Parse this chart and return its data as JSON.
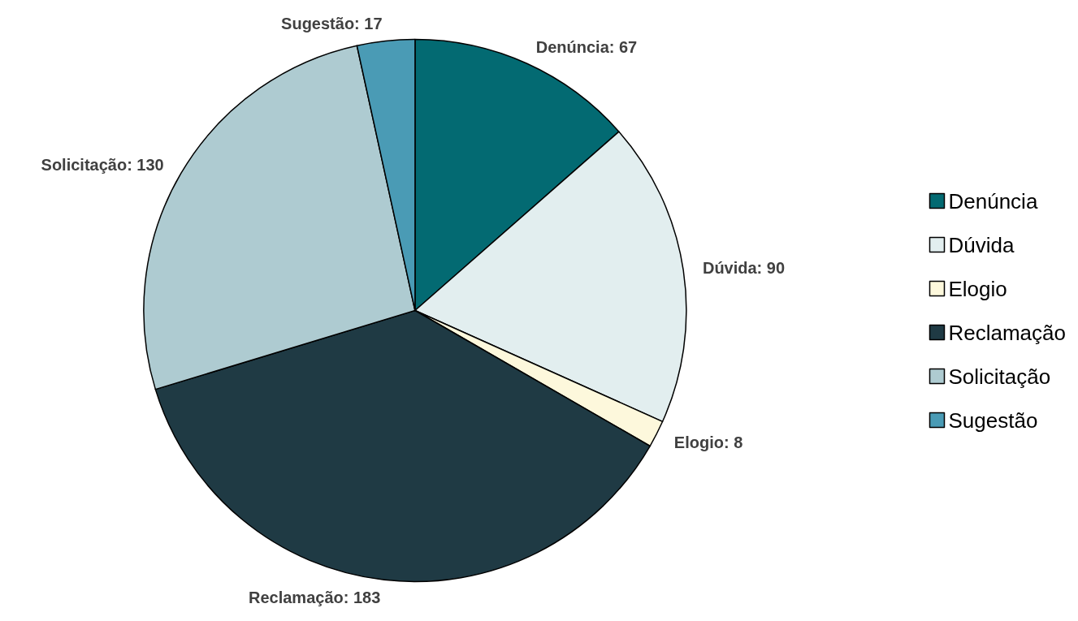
{
  "chart_data": {
    "type": "pie",
    "categories": [
      "Denúncia",
      "Dúvida",
      "Elogio",
      "Reclamação",
      "Solicitação",
      "Sugestão"
    ],
    "values": [
      67,
      90,
      8,
      183,
      130,
      17
    ],
    "value_labels": [
      "Denúncia: 67",
      "Dúvida: 90",
      "Elogio: 8",
      "Reclamação: 183",
      "Solicitação: 130",
      "Sugestão: 17"
    ],
    "colors": [
      "#036a72",
      "#e2eeef",
      "#fdf8dc",
      "#1f3a44",
      "#aecbd1",
      "#4a9bb5"
    ],
    "legend": "right"
  }
}
